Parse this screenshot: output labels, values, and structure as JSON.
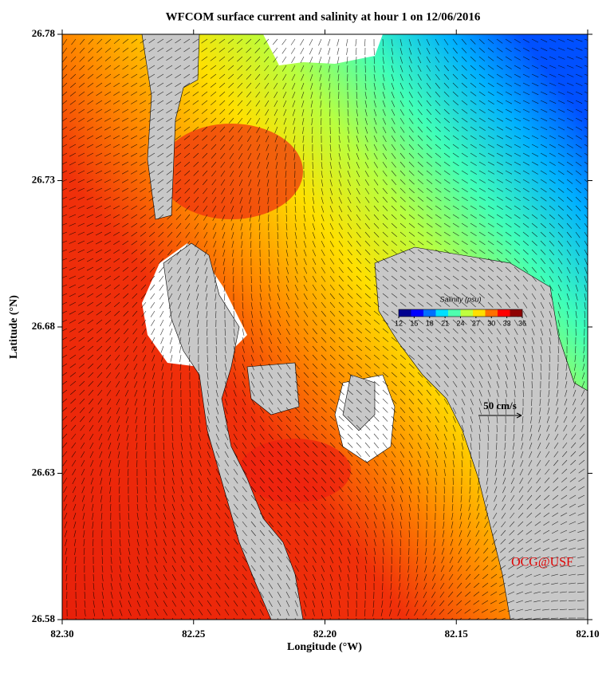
{
  "chart_data": {
    "type": "map",
    "title": "WFCOM surface current and salinity at hour 1 on 12/06/2016",
    "x_label": "Longitude (°W)",
    "y_label": "Latitude (°N)",
    "xlim": [
      82.3,
      82.1
    ],
    "xticks": [
      {
        "value": 82.3,
        "label": "82.30"
      },
      82.25,
      {
        "value": 82.2,
        "label": "82.20"
      },
      82.15,
      {
        "value": 82.1,
        "label": "82.10"
      }
    ],
    "ylim": [
      26.58,
      26.78
    ],
    "yticks": [
      26.58,
      26.63,
      26.68,
      26.73,
      26.78
    ],
    "colorbar": {
      "title": "Salinity (psu)",
      "lim": [
        12,
        36
      ],
      "ticks": [
        12,
        15,
        18,
        21,
        24,
        27,
        30,
        33,
        36
      ],
      "colors": [
        "#00008f",
        "#0000ff",
        "#006fff",
        "#00dfff",
        "#4fffaf",
        "#bfff3f",
        "#ffdf00",
        "#ff7000",
        "#ff0000",
        "#8f0000"
      ]
    },
    "scale_label": "50 cm/s",
    "credit": "OCG@USF"
  }
}
